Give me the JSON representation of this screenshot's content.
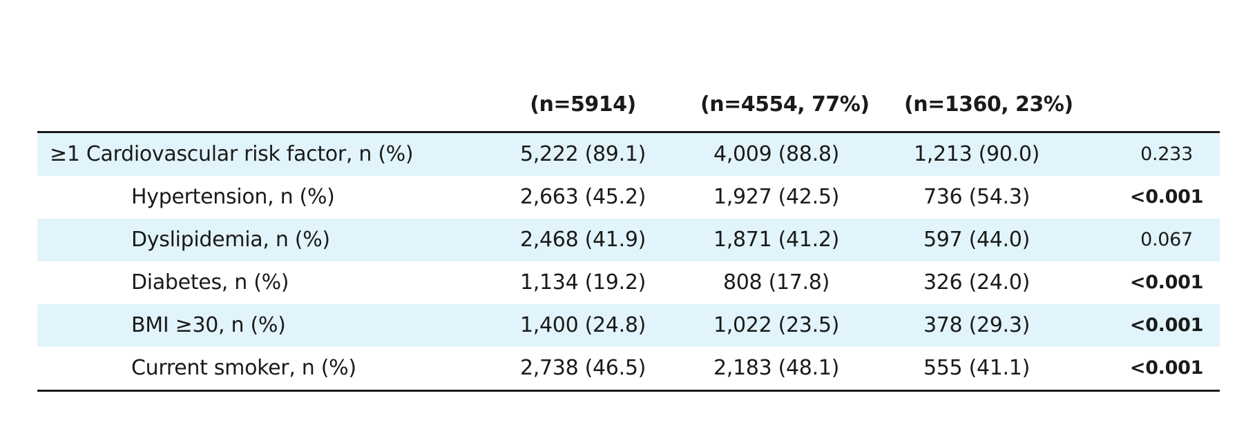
{
  "header": {
    "col1": "(n=5914)",
    "col2": "(n=4554, 77%)",
    "col3": "(n=1360, 23%)"
  },
  "rows": [
    {
      "label": "≥1 Cardiovascular risk factor, n (%)",
      "total": "5,222 (89.1)",
      "group1": "4,009 (88.8)",
      "group2": "1,213 (90.0)",
      "p": "0.233",
      "p_significant": false,
      "indent": false
    },
    {
      "label": "Hypertension, n (%)",
      "total": "2,663 (45.2)",
      "group1": "1,927 (42.5)",
      "group2": "736 (54.3)",
      "p": "<0.001",
      "p_significant": true,
      "indent": true
    },
    {
      "label": "Dyslipidemia, n (%)",
      "total": "2,468 (41.9)",
      "group1": "1,871 (41.2)",
      "group2": "597 (44.0)",
      "p": "0.067",
      "p_significant": false,
      "indent": true
    },
    {
      "label": "Diabetes, n (%)",
      "total": "1,134 (19.2)",
      "group1": "808 (17.8)",
      "group2": "326 (24.0)",
      "p": "<0.001",
      "p_significant": true,
      "indent": true
    },
    {
      "label": "BMI ≥30, n (%)",
      "total": "1,400 (24.8)",
      "group1": "1,022 (23.5)",
      "group2": "378 (29.3)",
      "p": "<0.001",
      "p_significant": true,
      "indent": true
    },
    {
      "label": "Current smoker, n (%)",
      "total": "2,738 (46.5)",
      "group1": "2,183 (48.1)",
      "group2": "555 (41.1)",
      "p": "<0.001",
      "p_significant": true,
      "indent": true
    }
  ],
  "colors": {
    "shaded_row": "#e1f4fb",
    "text": "#1a1a1a",
    "rule": "#1a1a1a"
  }
}
